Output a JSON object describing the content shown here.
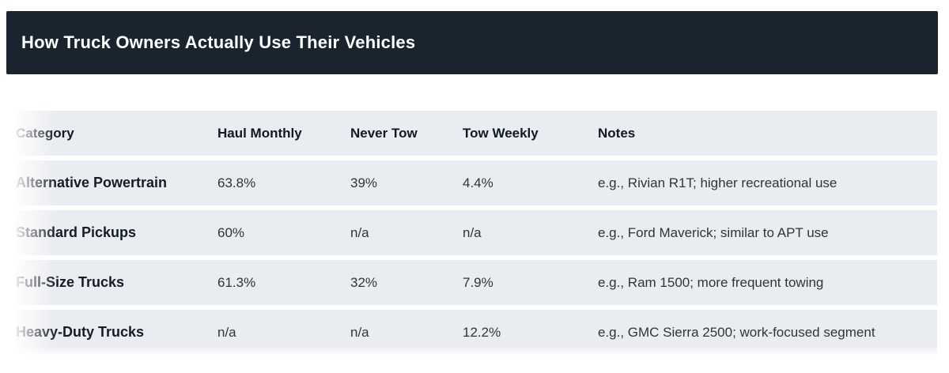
{
  "header": {
    "title": "How Truck Owners Actually Use Their Vehicles"
  },
  "table": {
    "columns": {
      "category": "Category",
      "haul_monthly": "Haul Monthly",
      "never_tow": "Never Tow",
      "tow_weekly": "Tow Weekly",
      "notes": "Notes"
    },
    "rows": [
      {
        "category": "Alternative Powertrain",
        "haul_monthly": "63.8%",
        "never_tow": "39%",
        "tow_weekly": "4.4%",
        "notes": "e.g., Rivian R1T; higher recreational use"
      },
      {
        "category": "Standard Pickups",
        "haul_monthly": "60%",
        "never_tow": "n/a",
        "tow_weekly": "n/a",
        "notes": "e.g., Ford Maverick; similar to APT use"
      },
      {
        "category": "Full-Size Trucks",
        "haul_monthly": "61.3%",
        "never_tow": "32%",
        "tow_weekly": "7.9%",
        "notes": "e.g., Ram 1500; more frequent towing"
      },
      {
        "category": "Heavy-Duty Trucks",
        "haul_monthly": "n/a",
        "never_tow": "n/a",
        "tow_weekly": "12.2%",
        "notes": "e.g., GMC Sierra 2500; work-focused segment"
      }
    ]
  },
  "colors": {
    "title_bar_bg": "#19242f",
    "title_text": "#ffffff",
    "row_bg": "#e9ecf0",
    "heading_text": "#101a23",
    "cell_text": "#30353b",
    "page_bg": "#ffffff"
  }
}
